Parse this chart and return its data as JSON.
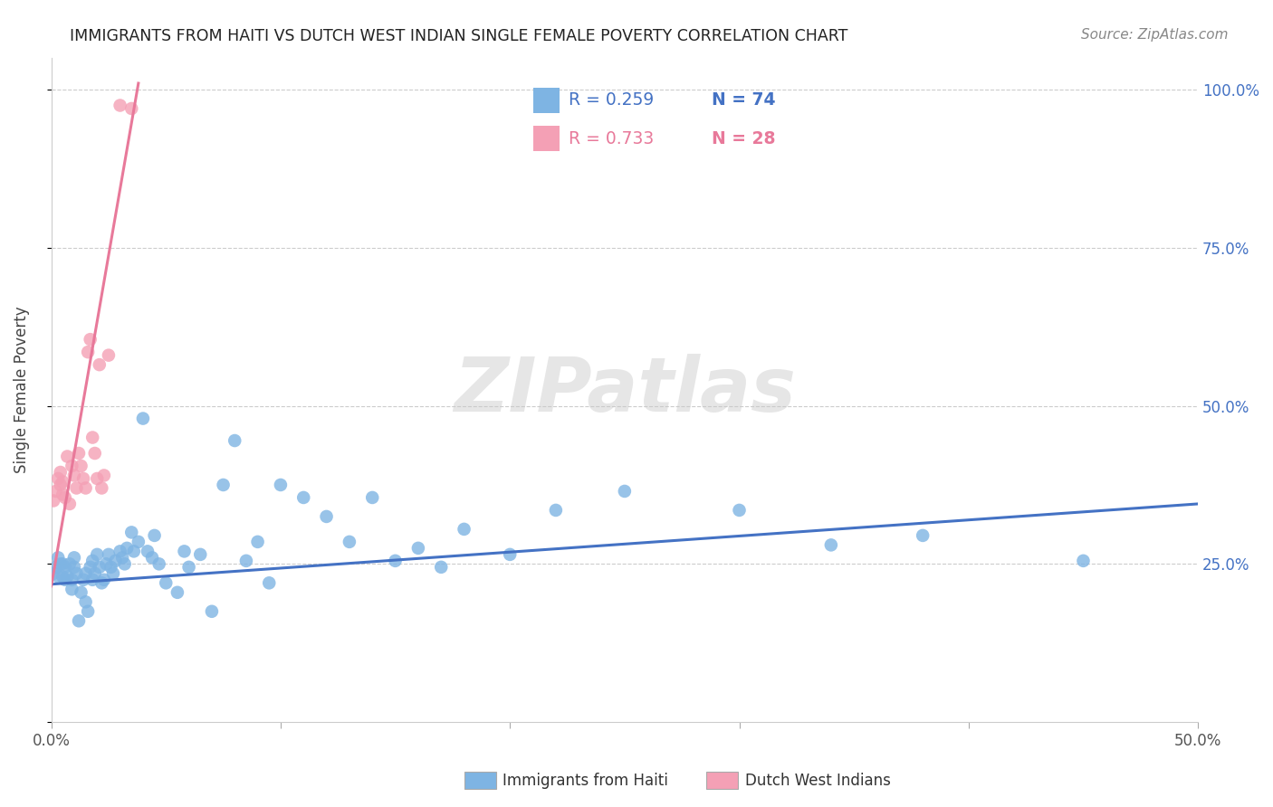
{
  "title": "IMMIGRANTS FROM HAITI VS DUTCH WEST INDIAN SINGLE FEMALE POVERTY CORRELATION CHART",
  "source": "Source: ZipAtlas.com",
  "ylabel": "Single Female Poverty",
  "xlim": [
    0.0,
    0.5
  ],
  "ylim": [
    0.0,
    1.05
  ],
  "haiti_color": "#7EB4E3",
  "dutch_color": "#F4A0B5",
  "haiti_line_color": "#4472C4",
  "dutch_line_color": "#E8799A",
  "legend_R_haiti": "R = 0.259",
  "legend_N_haiti": "N = 74",
  "legend_R_dutch": "R = 0.733",
  "legend_N_dutch": "N = 28",
  "legend_label_haiti": "Immigrants from Haiti",
  "legend_label_dutch": "Dutch West Indians",
  "watermark": "ZIPatlas",
  "haiti_x": [
    0.001,
    0.002,
    0.003,
    0.003,
    0.004,
    0.005,
    0.005,
    0.006,
    0.006,
    0.007,
    0.008,
    0.009,
    0.009,
    0.01,
    0.01,
    0.011,
    0.012,
    0.013,
    0.014,
    0.015,
    0.015,
    0.016,
    0.017,
    0.018,
    0.018,
    0.019,
    0.02,
    0.021,
    0.022,
    0.023,
    0.024,
    0.025,
    0.026,
    0.027,
    0.028,
    0.03,
    0.031,
    0.032,
    0.033,
    0.035,
    0.036,
    0.038,
    0.04,
    0.042,
    0.044,
    0.045,
    0.047,
    0.05,
    0.055,
    0.058,
    0.06,
    0.065,
    0.07,
    0.075,
    0.08,
    0.085,
    0.09,
    0.095,
    0.1,
    0.11,
    0.12,
    0.13,
    0.14,
    0.15,
    0.16,
    0.17,
    0.18,
    0.2,
    0.22,
    0.25,
    0.3,
    0.34,
    0.38,
    0.45
  ],
  "haiti_y": [
    0.235,
    0.245,
    0.23,
    0.26,
    0.25,
    0.23,
    0.25,
    0.225,
    0.245,
    0.23,
    0.25,
    0.21,
    0.225,
    0.245,
    0.26,
    0.235,
    0.16,
    0.205,
    0.225,
    0.19,
    0.235,
    0.175,
    0.245,
    0.225,
    0.255,
    0.235,
    0.265,
    0.245,
    0.22,
    0.225,
    0.25,
    0.265,
    0.245,
    0.235,
    0.255,
    0.27,
    0.26,
    0.25,
    0.275,
    0.3,
    0.27,
    0.285,
    0.48,
    0.27,
    0.26,
    0.295,
    0.25,
    0.22,
    0.205,
    0.27,
    0.245,
    0.265,
    0.175,
    0.375,
    0.445,
    0.255,
    0.285,
    0.22,
    0.375,
    0.355,
    0.325,
    0.285,
    0.355,
    0.255,
    0.275,
    0.245,
    0.305,
    0.265,
    0.335,
    0.365,
    0.335,
    0.28,
    0.295,
    0.255
  ],
  "dutch_x": [
    0.001,
    0.002,
    0.003,
    0.004,
    0.004,
    0.005,
    0.005,
    0.006,
    0.007,
    0.008,
    0.009,
    0.01,
    0.011,
    0.012,
    0.013,
    0.014,
    0.015,
    0.016,
    0.017,
    0.018,
    0.019,
    0.02,
    0.021,
    0.022,
    0.023,
    0.025,
    0.03,
    0.035
  ],
  "dutch_y": [
    0.35,
    0.365,
    0.385,
    0.375,
    0.395,
    0.36,
    0.38,
    0.355,
    0.42,
    0.345,
    0.405,
    0.39,
    0.37,
    0.425,
    0.405,
    0.385,
    0.37,
    0.585,
    0.605,
    0.45,
    0.425,
    0.385,
    0.565,
    0.37,
    0.39,
    0.58,
    0.975,
    0.97
  ],
  "haiti_line_x": [
    0.0,
    0.5
  ],
  "haiti_line_y": [
    0.218,
    0.345
  ],
  "dutch_line_x": [
    0.0,
    0.038
  ],
  "dutch_line_y": [
    0.215,
    1.01
  ]
}
